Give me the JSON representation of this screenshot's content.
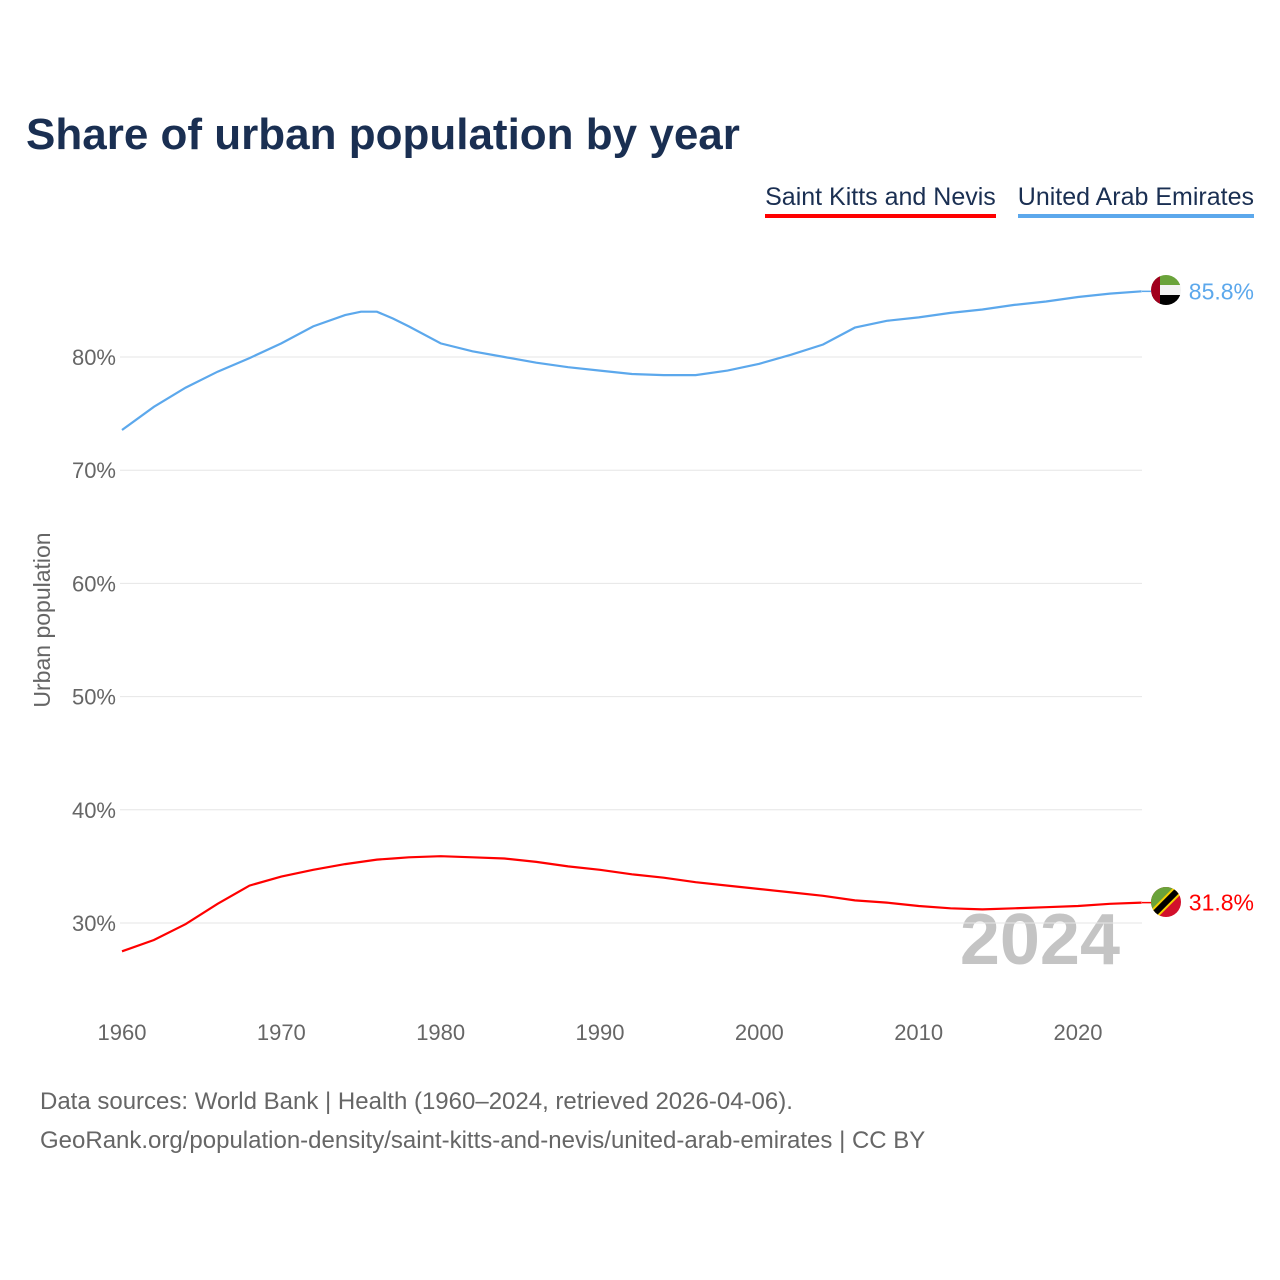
{
  "title": "Share of urban population by year",
  "footer": {
    "line1": "Data sources: World Bank | Health (1960–2024, retrieved 2026-04-06).",
    "line2": "GeoRank.org/population-density/saint-kitts-and-nevis/united-arab-emirates | CC BY"
  },
  "chart_data": {
    "type": "line",
    "title": "Share of urban population by year",
    "xlabel": "",
    "ylabel": "Urban population",
    "xlim": [
      1960,
      2024
    ],
    "ylim": [
      24,
      89
    ],
    "x_ticks": [
      "1960",
      "1970",
      "1980",
      "1990",
      "2000",
      "2010",
      "2020"
    ],
    "y_ticks": [
      "30%",
      "40%",
      "50%",
      "60%",
      "70%",
      "80%"
    ],
    "y_tick_values": [
      30,
      40,
      50,
      60,
      70,
      80
    ],
    "grid": true,
    "legend_position": "top-right",
    "watermark_year": "2024",
    "x": [
      1960,
      1962,
      1964,
      1966,
      1968,
      1970,
      1972,
      1974,
      1975,
      1976,
      1977,
      1978,
      1980,
      1982,
      1984,
      1986,
      1988,
      1990,
      1992,
      1994,
      1996,
      1998,
      2000,
      2002,
      2004,
      2006,
      2008,
      2010,
      2012,
      2014,
      2016,
      2018,
      2020,
      2022,
      2024
    ],
    "series": [
      {
        "name": "Saint Kitts and Nevis",
        "color": "#ff0000",
        "end_label": "31.8%",
        "values": [
          27.5,
          28.5,
          29.9,
          31.7,
          33.3,
          34.1,
          34.7,
          35.2,
          35.4,
          35.6,
          35.7,
          35.8,
          35.9,
          35.8,
          35.7,
          35.4,
          35.0,
          34.7,
          34.3,
          34.0,
          33.6,
          33.3,
          33.0,
          32.7,
          32.4,
          32.0,
          31.8,
          31.5,
          31.3,
          31.2,
          31.3,
          31.4,
          31.5,
          31.7,
          31.8
        ]
      },
      {
        "name": "United Arab Emirates",
        "color": "#5ca8ec",
        "end_label": "85.8%",
        "values": [
          73.55,
          75.6,
          77.3,
          78.7,
          79.9,
          81.2,
          82.7,
          83.7,
          84.0,
          84.0,
          83.4,
          82.7,
          81.2,
          80.5,
          80.0,
          79.5,
          79.1,
          78.8,
          78.5,
          78.4,
          78.4,
          78.8,
          79.4,
          80.2,
          81.1,
          82.6,
          83.2,
          83.5,
          83.9,
          84.2,
          84.6,
          84.9,
          85.3,
          85.6,
          85.8
        ]
      }
    ]
  }
}
